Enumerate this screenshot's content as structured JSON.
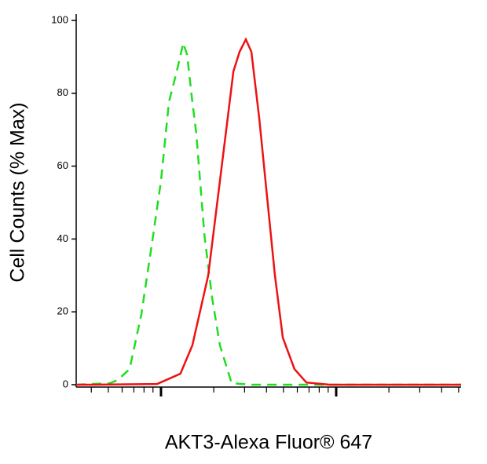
{
  "chart_data": {
    "type": "line",
    "xlabel": "AKT3-Alexa Fluor® 647",
    "ylabel": "Cell Counts (% Max)",
    "xscale": "log",
    "xlim": [
      32.8,
      5164
    ],
    "xticks": [
      100,
      1000
    ],
    "xminor_ticks": [
      40,
      50,
      60,
      70,
      80,
      90,
      200,
      300,
      400,
      500,
      600,
      700,
      800,
      900,
      2000,
      3000,
      4000,
      5000
    ],
    "ylim": [
      0,
      100
    ],
    "yticks": [
      0,
      20,
      40,
      60,
      80,
      100
    ],
    "series": [
      {
        "color": "#22dd22",
        "dash": true,
        "x": [
          32.8,
          51.1,
          56.7,
          66.2,
          77.3,
          90.2,
          100,
          111,
          123,
          134,
          141,
          151,
          159,
          177,
          196,
          217,
          253,
          328,
          5164
        ],
        "values": [
          0,
          0.4,
          1.3,
          4.3,
          19.4,
          41,
          56,
          77.6,
          86,
          93.8,
          90.5,
          77.6,
          69,
          41,
          23.7,
          10.8,
          0.4,
          0,
          0
        ]
      },
      {
        "color": "#ee1111",
        "dash": false,
        "x": [
          32.8,
          41.6,
          95,
          129,
          151,
          186,
          217,
          240,
          259,
          281,
          305,
          328,
          364,
          403,
          447,
          496,
          578,
          676,
          920,
          2104,
          5164
        ],
        "values": [
          0,
          0,
          0.2,
          3,
          10.8,
          30,
          56,
          73,
          86,
          91.4,
          94.8,
          91.4,
          73,
          51.7,
          30,
          12.9,
          4.3,
          0.6,
          0,
          0,
          0
        ]
      }
    ]
  }
}
